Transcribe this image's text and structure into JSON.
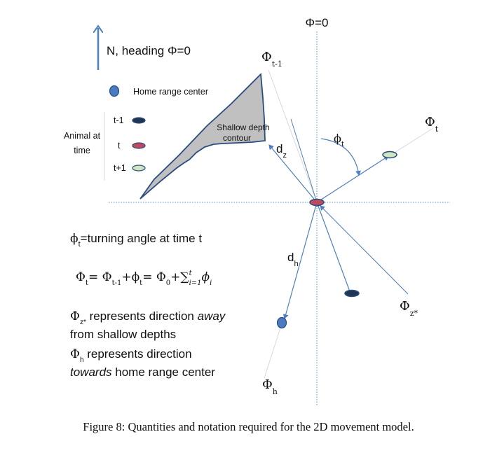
{
  "north": {
    "label": "N, heading Φ=0"
  },
  "axis_label": "Φ=0",
  "legend": {
    "home": "Home range center",
    "group_label": [
      "Animal at",
      "time"
    ],
    "times": [
      "t-1",
      "t",
      "t+1"
    ]
  },
  "shallow": [
    "Shallow depth",
    "contour"
  ],
  "labels": {
    "phi_tm1": {
      "main": "Φ",
      "sub": "t-1"
    },
    "phi_t": {
      "main": "Φ",
      "sub": "t"
    },
    "phi_small_t": {
      "main": "ϕ",
      "sub": "t"
    },
    "d_z": {
      "main": "d",
      "sub": "z"
    },
    "d_h": {
      "main": "d",
      "sub": "h"
    },
    "phi_zstar": {
      "main": "Φ",
      "sub": "z*"
    },
    "phi_h": {
      "main": "Φ",
      "sub": "h"
    }
  },
  "text_block": {
    "turning": {
      "main": "ϕ",
      "sub": "t",
      "rest": "=turning angle at time t"
    },
    "eq": {
      "a": "Φ",
      "a_sub": "t",
      "b": "= Φ",
      "b_sub": "t-1",
      "c": "+ϕ",
      "c_sub": "t",
      "d": "= Φ",
      "d_sub": "0",
      "e": "+∑",
      "e_sup": "t",
      "e_sub": "i=1",
      "f": "ϕ",
      "f_sub": "i"
    },
    "zstar": {
      "main": "Φ",
      "sub": "z*",
      "rest1": " represents direction ",
      "em": "away",
      "line2": "from shallow depths"
    },
    "h": {
      "main": "Φ",
      "sub": "h",
      "rest1": " represents direction",
      "em": "towards",
      "rest2": " home range center"
    }
  },
  "caption": "Figure 8: Quantities and notation required for the 2D movement model.",
  "colors": {
    "arrow": "#4f7fbf",
    "home_fill": "#4a7ac0",
    "tm1_fill": "#1f3550",
    "t_fill": "#c0495c",
    "tp1_fill": "#cfe6c0",
    "shallow_fill": "#c0c0c0",
    "axis": "#5b8ac8"
  }
}
